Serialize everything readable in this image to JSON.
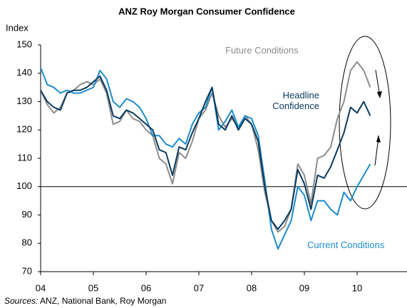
{
  "chart_data": {
    "type": "line",
    "title": "ANZ Roy Morgan Consumer Confidence",
    "y_label": "Index",
    "x": [
      2004.0,
      2004.125,
      2004.25,
      2004.375,
      2004.5,
      2004.625,
      2004.75,
      2004.875,
      2005.0,
      2005.125,
      2005.25,
      2005.375,
      2005.5,
      2005.625,
      2005.75,
      2005.875,
      2006.0,
      2006.125,
      2006.25,
      2006.375,
      2006.5,
      2006.625,
      2006.75,
      2006.875,
      2007.0,
      2007.125,
      2007.25,
      2007.375,
      2007.5,
      2007.625,
      2007.75,
      2007.875,
      2008.0,
      2008.125,
      2008.25,
      2008.375,
      2008.5,
      2008.625,
      2008.75,
      2008.875,
      2009.0,
      2009.125,
      2009.25,
      2009.375,
      2009.5,
      2009.625,
      2009.75,
      2009.875,
      2010.0,
      2010.125,
      2010.25
    ],
    "series": [
      {
        "name": "Headline Confidence",
        "color": "#0b3a5e",
        "values": [
          134,
          130,
          128,
          127,
          133,
          134,
          134,
          135,
          137,
          139,
          134,
          125,
          124,
          127,
          126,
          124,
          122,
          120,
          113,
          112,
          104,
          114,
          113,
          119,
          124,
          130,
          135,
          122,
          120,
          125,
          120,
          124,
          122,
          116,
          100,
          88,
          85,
          88,
          92,
          106,
          101,
          92,
          104,
          103,
          107,
          113,
          119,
          128,
          126,
          130,
          125
        ]
      },
      {
        "name": "Future Conditions",
        "color": "#8c8c8c",
        "values": [
          134,
          129,
          126,
          128,
          133,
          134,
          136,
          137,
          136,
          138,
          133,
          122,
          123,
          127,
          124,
          123,
          120,
          118,
          110,
          108,
          101,
          112,
          110,
          116,
          124,
          127,
          133,
          125,
          121,
          124,
          121,
          125,
          122,
          113,
          98,
          88,
          84,
          86,
          92,
          108,
          104,
          94,
          110,
          111,
          114,
          124,
          130,
          141,
          144,
          141,
          135
        ]
      },
      {
        "name": "Current Conditions",
        "color": "#1c8ccc",
        "values": [
          142,
          136,
          135,
          133,
          134,
          133,
          133,
          134,
          135,
          141,
          138,
          130,
          128,
          131,
          130,
          128,
          124,
          118,
          118,
          115,
          114,
          117,
          115,
          122,
          126,
          128,
          135,
          120,
          123,
          127,
          121,
          125,
          124,
          118,
          102,
          85,
          78,
          83,
          88,
          100,
          97,
          88,
          95,
          95,
          92,
          90,
          98,
          95,
          100,
          104,
          108
        ]
      }
    ],
    "xlim": [
      2004,
      2011
    ],
    "xticks": [
      {
        "value": 2004,
        "label": "04"
      },
      {
        "value": 2005,
        "label": "05"
      },
      {
        "value": 2006,
        "label": "06"
      },
      {
        "value": 2007,
        "label": "07"
      },
      {
        "value": 2008,
        "label": "08"
      },
      {
        "value": 2009,
        "label": "09"
      },
      {
        "value": 2010,
        "label": "10"
      }
    ],
    "ylim": [
      70,
      150
    ],
    "yticks": [
      70,
      80,
      90,
      100,
      110,
      120,
      130,
      140,
      150
    ],
    "reference_line": 100,
    "source_label": "Sources:",
    "source": "ANZ, National Bank, Roy Morgan"
  }
}
